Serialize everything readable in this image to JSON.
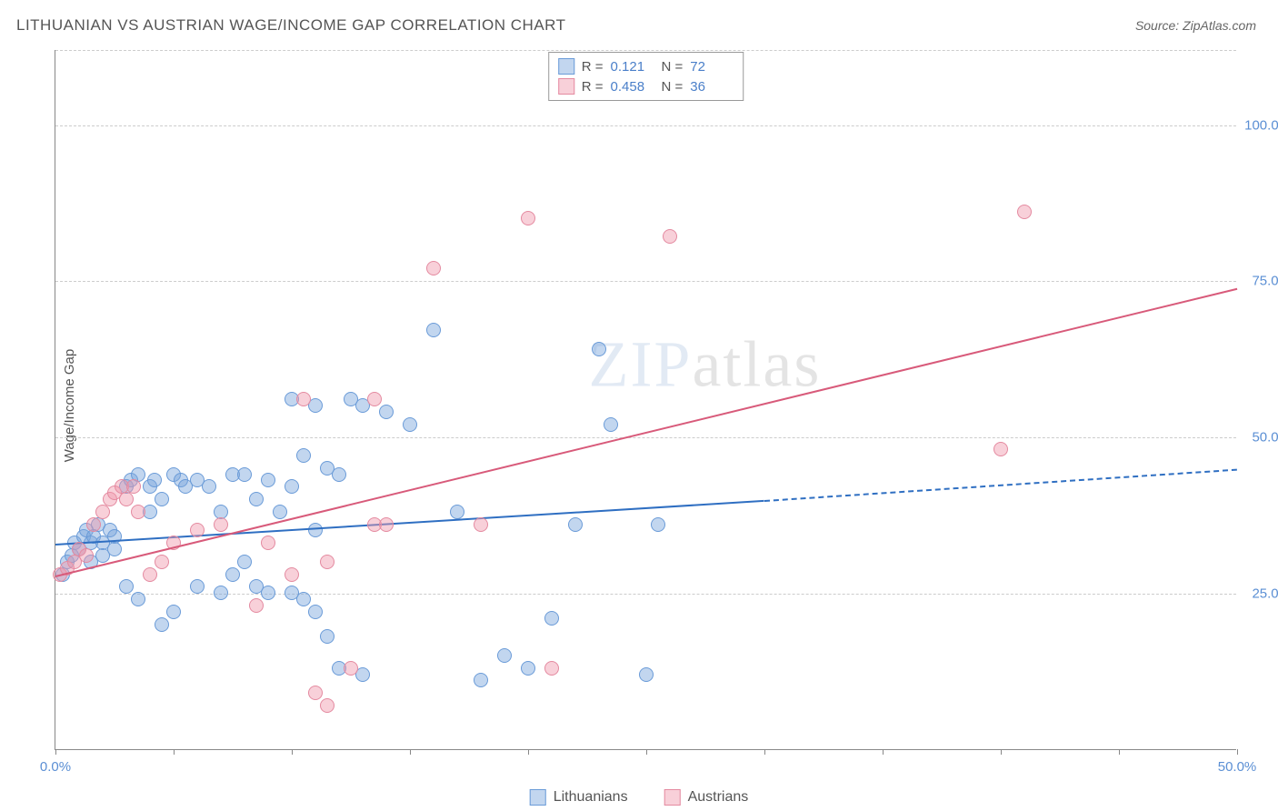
{
  "title": "LITHUANIAN VS AUSTRIAN WAGE/INCOME GAP CORRELATION CHART",
  "source_label": "Source:",
  "source_name": "ZipAtlas.com",
  "ylabel": "Wage/Income Gap",
  "watermark_bold": "ZIP",
  "watermark_thin": "atlas",
  "chart": {
    "type": "scatter",
    "xlim": [
      0,
      50
    ],
    "ylim": [
      0,
      112
    ],
    "x_ticks": [
      0,
      5,
      10,
      15,
      20,
      25,
      30,
      35,
      40,
      45,
      50
    ],
    "x_tick_labels": {
      "0": "0.0%",
      "50": "50.0%"
    },
    "y_gridlines": [
      25,
      50,
      75,
      100,
      112
    ],
    "y_tick_labels": {
      "25": "25.0%",
      "50": "50.0%",
      "75": "75.0%",
      "100": "100.0%"
    },
    "background_color": "#ffffff",
    "grid_color": "#cccccc",
    "axis_color": "#888888",
    "tick_label_color": "#5b8fd4",
    "point_radius": 8,
    "series": [
      {
        "name": "Lithuanians",
        "fill_color": "rgba(120,165,220,0.45)",
        "stroke_color": "#6a9bd8",
        "r_label": "R =",
        "r_value": "0.121",
        "n_label": "N =",
        "n_value": "72",
        "trend": {
          "x1": 0,
          "y1": 33,
          "x2": 30,
          "y2": 40,
          "x2_dashed": 50,
          "y2_dashed": 45,
          "color": "#2f6fc2",
          "width": 2
        },
        "points": [
          [
            0.3,
            28
          ],
          [
            0.5,
            30
          ],
          [
            0.7,
            31
          ],
          [
            0.8,
            33
          ],
          [
            1.0,
            32
          ],
          [
            1.2,
            34
          ],
          [
            1.3,
            35
          ],
          [
            1.5,
            33
          ],
          [
            1.6,
            34
          ],
          [
            1.8,
            36
          ],
          [
            2.0,
            33
          ],
          [
            2.3,
            35
          ],
          [
            2.5,
            34
          ],
          [
            1.5,
            30
          ],
          [
            2.0,
            31
          ],
          [
            2.5,
            32
          ],
          [
            3.0,
            42
          ],
          [
            3.2,
            43
          ],
          [
            3.5,
            44
          ],
          [
            4.0,
            42
          ],
          [
            4.2,
            43
          ],
          [
            4.5,
            40
          ],
          [
            5.0,
            44
          ],
          [
            5.3,
            43
          ],
          [
            3.0,
            26
          ],
          [
            3.5,
            24
          ],
          [
            4.0,
            38
          ],
          [
            5.5,
            42
          ],
          [
            6.0,
            43
          ],
          [
            6.5,
            42
          ],
          [
            7.0,
            38
          ],
          [
            7.5,
            44
          ],
          [
            4.5,
            20
          ],
          [
            5.0,
            22
          ],
          [
            6.0,
            26
          ],
          [
            7.0,
            25
          ],
          [
            7.5,
            28
          ],
          [
            8.0,
            30
          ],
          [
            8.5,
            26
          ],
          [
            9.0,
            25
          ],
          [
            8.0,
            44
          ],
          [
            8.5,
            40
          ],
          [
            9.0,
            43
          ],
          [
            9.5,
            38
          ],
          [
            10.0,
            42
          ],
          [
            10.5,
            47
          ],
          [
            11.0,
            35
          ],
          [
            11.5,
            45
          ],
          [
            10.0,
            25
          ],
          [
            10.5,
            24
          ],
          [
            11.0,
            22
          ],
          [
            11.5,
            18
          ],
          [
            12.0,
            13
          ],
          [
            13.0,
            12
          ],
          [
            10.0,
            56
          ],
          [
            11.0,
            55
          ],
          [
            12.0,
            44
          ],
          [
            12.5,
            56
          ],
          [
            13.0,
            55
          ],
          [
            14.0,
            54
          ],
          [
            15.0,
            52
          ],
          [
            16.0,
            67
          ],
          [
            17.0,
            38
          ],
          [
            23.0,
            64
          ],
          [
            18.0,
            11
          ],
          [
            19.0,
            15
          ],
          [
            20.0,
            13
          ],
          [
            21.0,
            21
          ],
          [
            22.0,
            36
          ],
          [
            25.0,
            12
          ],
          [
            23.5,
            52
          ],
          [
            25.5,
            36
          ]
        ]
      },
      {
        "name": "Austrians",
        "fill_color": "rgba(240,150,170,0.45)",
        "stroke_color": "#e48aa0",
        "r_label": "R =",
        "r_value": "0.458",
        "n_label": "N =",
        "n_value": "36",
        "trend": {
          "x1": 0,
          "y1": 28,
          "x2": 50,
          "y2": 74,
          "color": "#d85a7a",
          "width": 2
        },
        "points": [
          [
            0.2,
            28
          ],
          [
            0.5,
            29
          ],
          [
            0.8,
            30
          ],
          [
            1.0,
            32
          ],
          [
            1.3,
            31
          ],
          [
            1.6,
            36
          ],
          [
            2.0,
            38
          ],
          [
            2.3,
            40
          ],
          [
            2.5,
            41
          ],
          [
            2.8,
            42
          ],
          [
            3.0,
            40
          ],
          [
            3.3,
            42
          ],
          [
            3.5,
            38
          ],
          [
            4.0,
            28
          ],
          [
            4.5,
            30
          ],
          [
            5.0,
            33
          ],
          [
            6.0,
            35
          ],
          [
            7.0,
            36
          ],
          [
            9.0,
            33
          ],
          [
            10.0,
            28
          ],
          [
            11.0,
            9
          ],
          [
            11.5,
            7
          ],
          [
            12.5,
            13
          ],
          [
            13.5,
            36
          ],
          [
            14.0,
            36
          ],
          [
            18.0,
            36
          ],
          [
            21.0,
            13
          ],
          [
            20.0,
            85
          ],
          [
            26.0,
            82
          ],
          [
            16.0,
            77
          ],
          [
            13.5,
            56
          ],
          [
            10.5,
            56
          ],
          [
            40.0,
            48
          ],
          [
            41.0,
            86
          ],
          [
            8.5,
            23
          ],
          [
            11.5,
            30
          ]
        ]
      }
    ]
  },
  "legend": {
    "items": [
      {
        "label": "Lithuanians",
        "fill": "rgba(120,165,220,0.45)",
        "stroke": "#6a9bd8"
      },
      {
        "label": "Austrians",
        "fill": "rgba(240,150,170,0.45)",
        "stroke": "#e48aa0"
      }
    ]
  }
}
